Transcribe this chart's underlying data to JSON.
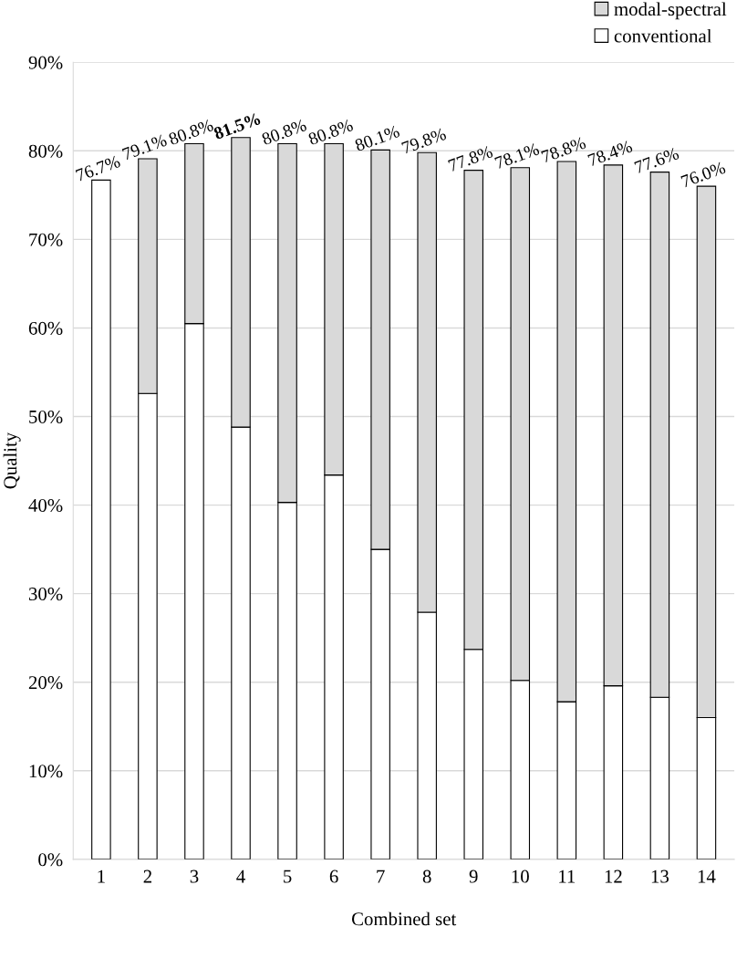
{
  "chart_data": {
    "type": "bar",
    "stacked": true,
    "xlabel": "Combined set",
    "ylabel": "Quality",
    "categories": [
      "1",
      "2",
      "3",
      "4",
      "5",
      "6",
      "7",
      "8",
      "9",
      "10",
      "11",
      "12",
      "13",
      "14"
    ],
    "series": [
      {
        "name": "conventional",
        "color": "#ffffff",
        "values": [
          76.7,
          52.6,
          60.5,
          48.8,
          40.3,
          43.4,
          35.0,
          27.9,
          23.7,
          20.2,
          17.8,
          19.6,
          18.3,
          16.0
        ]
      },
      {
        "name": "modal-spectral",
        "color": "#d9d9d9",
        "values": [
          null,
          26.5,
          20.3,
          32.7,
          40.5,
          37.4,
          45.1,
          51.9,
          54.1,
          57.9,
          61.0,
          58.8,
          59.3,
          60.0
        ]
      }
    ],
    "totals": [
      "76.7%",
      "79.1%",
      "80.8%",
      "81.5%",
      "80.8%",
      "80.8%",
      "80.1%",
      "79.8%",
      "77.8%",
      "78.1%",
      "78.8%",
      "78.4%",
      "77.6%",
      "76.0%"
    ],
    "ylim": [
      0,
      90
    ],
    "yticks": [
      {
        "value": 0,
        "label": "0%"
      },
      {
        "value": 10,
        "label": "10%"
      },
      {
        "value": 20,
        "label": "20%"
      },
      {
        "value": 30,
        "label": "30%"
      },
      {
        "value": 40,
        "label": "40%"
      },
      {
        "value": 50,
        "label": "50%"
      },
      {
        "value": 60,
        "label": "60%"
      },
      {
        "value": 70,
        "label": "70%"
      },
      {
        "value": 80,
        "label": "80%"
      },
      {
        "value": 90,
        "label": "90%"
      }
    ],
    "grid": "y",
    "legend": "top right"
  }
}
